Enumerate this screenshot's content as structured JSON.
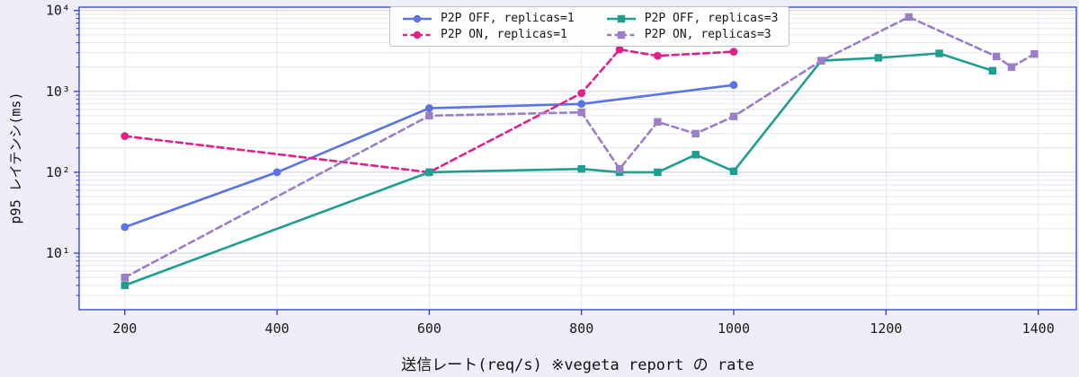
{
  "figure": {
    "background": "#edeef7",
    "plot_background": "#ffffff",
    "spine_color": "#2b3bdc",
    "grid_major_color": "#d3d6e5",
    "grid_minor_color": "#e4e6f0",
    "tick_label_color": "#1a1a1a",
    "legend_background": "#fdfdfe",
    "legend_border": "#bcc0d4"
  },
  "chart_data": {
    "type": "line",
    "title": "",
    "xlabel": "送信レート(req/s) ※vegeta report の rate",
    "ylabel": "p95 レイテンシ(ms)",
    "x_scale": "linear",
    "y_scale": "log",
    "xlim": [
      140,
      1450
    ],
    "ylim": [
      2,
      11000
    ],
    "x_ticks": [
      200,
      400,
      600,
      800,
      1000,
      1200,
      1400
    ],
    "y_ticks": [
      10,
      100,
      1000,
      10000
    ],
    "y_tick_labels": [
      "10¹",
      "10²",
      "10³",
      "10⁴"
    ],
    "grid": true,
    "legend_position": "upper center",
    "series": [
      {
        "name": "P2P OFF, replicas=1",
        "color": "#5a73e6",
        "line_style": "solid",
        "marker": "circle",
        "points": [
          [
            200,
            21
          ],
          [
            400,
            100
          ],
          [
            600,
            620
          ],
          [
            800,
            700
          ],
          [
            1000,
            1200
          ]
        ]
      },
      {
        "name": "P2P ON, replicas=1",
        "color": "#e0218a",
        "line_style": "dashed",
        "marker": "circle",
        "points": [
          [
            200,
            280
          ],
          [
            600,
            100
          ],
          [
            800,
            950
          ],
          [
            850,
            3300
          ],
          [
            900,
            2750
          ],
          [
            1000,
            3100
          ]
        ]
      },
      {
        "name": "P2P OFF, replicas=3",
        "color": "#1f9e8e",
        "line_style": "solid",
        "marker": "square",
        "points": [
          [
            200,
            4
          ],
          [
            600,
            100
          ],
          [
            800,
            110
          ],
          [
            850,
            100
          ],
          [
            900,
            100
          ],
          [
            950,
            165
          ],
          [
            1000,
            103
          ],
          [
            1115,
            2400
          ],
          [
            1190,
            2600
          ],
          [
            1270,
            2950
          ],
          [
            1340,
            1800
          ]
        ]
      },
      {
        "name": "P2P ON, replicas=3",
        "color": "#9b7dc8",
        "line_style": "dashed",
        "marker": "square",
        "points": [
          [
            200,
            5
          ],
          [
            600,
            500
          ],
          [
            800,
            550
          ],
          [
            850,
            110
          ],
          [
            900,
            420
          ],
          [
            950,
            300
          ],
          [
            1000,
            490
          ],
          [
            1115,
            2400
          ],
          [
            1230,
            8300
          ],
          [
            1345,
            2700
          ],
          [
            1365,
            2000
          ],
          [
            1395,
            2900
          ]
        ]
      }
    ]
  }
}
